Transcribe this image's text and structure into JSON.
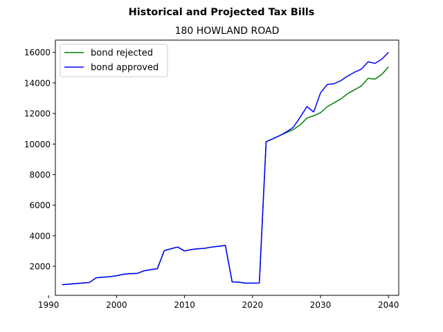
{
  "chart_data": {
    "type": "line",
    "suptitle": "Historical and Projected Tax Bills",
    "title": "180 HOWLAND ROAD",
    "xlabel": "",
    "ylabel": "",
    "xlim": [
      1991,
      2041.5
    ],
    "ylim": [
      100,
      16800
    ],
    "xticks": [
      1990,
      2000,
      2010,
      2020,
      2030,
      2040
    ],
    "yticks": [
      2000,
      4000,
      6000,
      8000,
      10000,
      12000,
      14000,
      16000
    ],
    "grid": false,
    "legend_position": "top-left",
    "series": [
      {
        "name": "bond rejected",
        "color": "#008000",
        "x": [
          1992,
          1993,
          1994,
          1995,
          1996,
          1997,
          1998,
          1999,
          2000,
          2001,
          2002,
          2003,
          2004,
          2005,
          2006,
          2007,
          2008,
          2009,
          2010,
          2011,
          2012,
          2013,
          2014,
          2015,
          2016,
          2017,
          2018,
          2019,
          2020,
          2021,
          2022,
          2023,
          2024,
          2025,
          2026,
          2027,
          2028,
          2029,
          2030,
          2031,
          2032,
          2033,
          2034,
          2035,
          2036,
          2037,
          2038,
          2039,
          2040
        ],
        "y": [
          800,
          830,
          870,
          910,
          940,
          1250,
          1290,
          1320,
          1380,
          1480,
          1520,
          1530,
          1700,
          1780,
          1840,
          3020,
          3150,
          3260,
          3000,
          3100,
          3150,
          3180,
          3260,
          3310,
          3370,
          980,
          960,
          900,
          900,
          910,
          10150,
          10350,
          10550,
          10750,
          10950,
          11250,
          11700,
          11850,
          12050,
          12450,
          12700,
          12950,
          13300,
          13550,
          13800,
          14300,
          14250,
          14550,
          15050
        ]
      },
      {
        "name": "bond approved",
        "color": "#0000ff",
        "x": [
          1992,
          1993,
          1994,
          1995,
          1996,
          1997,
          1998,
          1999,
          2000,
          2001,
          2002,
          2003,
          2004,
          2005,
          2006,
          2007,
          2008,
          2009,
          2010,
          2011,
          2012,
          2013,
          2014,
          2015,
          2016,
          2017,
          2018,
          2019,
          2020,
          2021,
          2022,
          2023,
          2024,
          2025,
          2026,
          2027,
          2028,
          2029,
          2030,
          2031,
          2032,
          2033,
          2034,
          2035,
          2036,
          2037,
          2038,
          2039,
          2040
        ],
        "y": [
          800,
          830,
          870,
          910,
          940,
          1250,
          1290,
          1320,
          1380,
          1480,
          1520,
          1530,
          1700,
          1780,
          1840,
          3020,
          3150,
          3260,
          3000,
          3100,
          3150,
          3180,
          3260,
          3310,
          3370,
          980,
          960,
          900,
          900,
          910,
          10150,
          10350,
          10550,
          10800,
          11100,
          11750,
          12450,
          12100,
          13350,
          13900,
          13950,
          14150,
          14450,
          14700,
          14900,
          15380,
          15280,
          15550,
          16000
        ]
      }
    ]
  }
}
